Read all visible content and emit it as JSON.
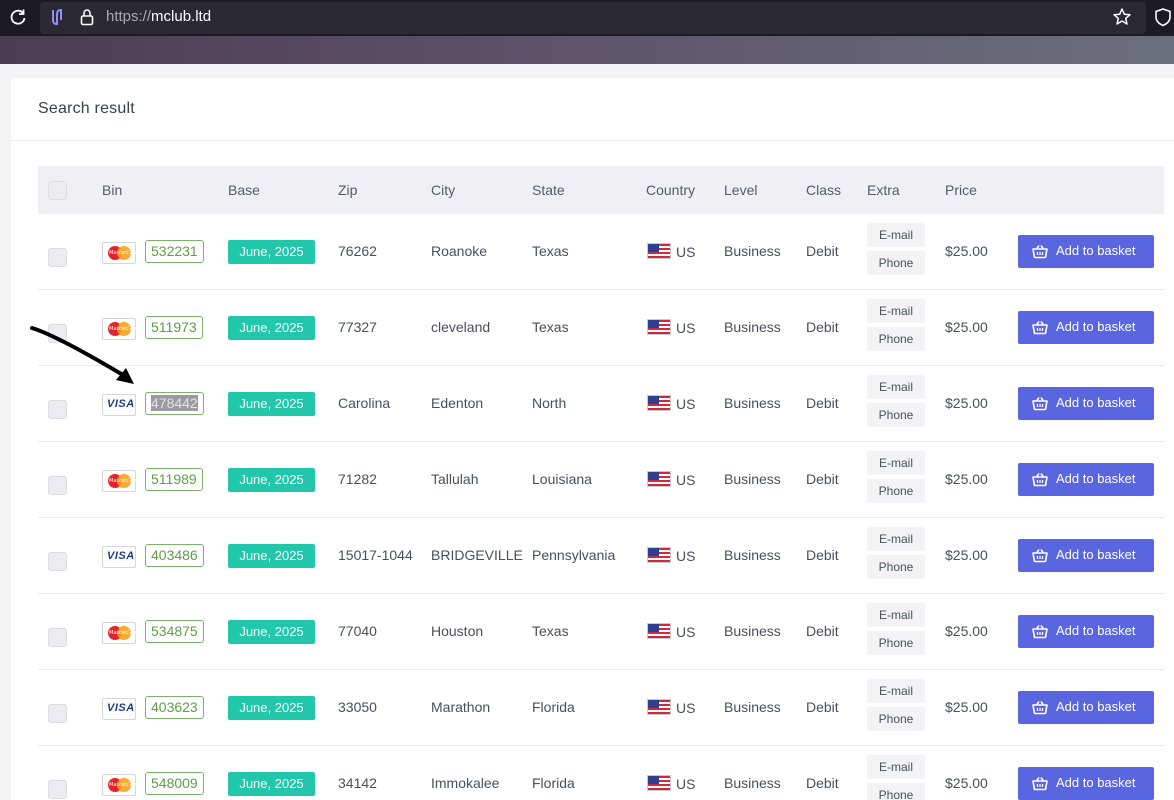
{
  "browser": {
    "url_protocol": "https://",
    "url_host": "mclub.ltd"
  },
  "card": {
    "title": "Search result"
  },
  "table": {
    "headers": {
      "bin": "Bin",
      "base": "Base",
      "zip": "Zip",
      "city": "City",
      "state": "State",
      "country": "Country",
      "level": "Level",
      "class": "Class",
      "extra": "Extra",
      "price": "Price"
    },
    "extra_email_label": "E-mail",
    "extra_phone_label": "Phone",
    "add_button_label": "Add to basket",
    "rows": [
      {
        "brand": "mastercard",
        "bin": "532231",
        "base": "June, 2025",
        "zip": "76262",
        "city": "Roanoke",
        "state": "Texas",
        "country": "US",
        "level": "Business",
        "class": "Debit",
        "price": "$25.00"
      },
      {
        "brand": "mastercard",
        "bin": "511973",
        "base": "June, 2025",
        "zip": "77327",
        "city": "cleveland",
        "state": "Texas",
        "country": "US",
        "level": "Business",
        "class": "Debit",
        "price": "$25.00"
      },
      {
        "brand": "visa",
        "bin": "478442",
        "base": "June, 2025",
        "zip": "Carolina",
        "city": "Edenton",
        "state": "North",
        "country": "US",
        "level": "Business",
        "class": "Debit",
        "price": "$25.00"
      },
      {
        "brand": "mastercard",
        "bin": "511989",
        "base": "June, 2025",
        "zip": "71282",
        "city": "Tallulah",
        "state": "Louisiana",
        "country": "US",
        "level": "Business",
        "class": "Debit",
        "price": "$25.00"
      },
      {
        "brand": "visa",
        "bin": "403486",
        "base": "June, 2025",
        "zip": "15017-1044",
        "city": "BRIDGEVILLE",
        "state": "Pennsylvania",
        "country": "US",
        "level": "Business",
        "class": "Debit",
        "price": "$25.00"
      },
      {
        "brand": "mastercard",
        "bin": "534875",
        "base": "June, 2025",
        "zip": "77040",
        "city": "Houston",
        "state": "Texas",
        "country": "US",
        "level": "Business",
        "class": "Debit",
        "price": "$25.00"
      },
      {
        "brand": "visa",
        "bin": "403623",
        "base": "June, 2025",
        "zip": "33050",
        "city": "Marathon",
        "state": "Florida",
        "country": "US",
        "level": "Business",
        "class": "Debit",
        "price": "$25.00"
      },
      {
        "brand": "mastercard",
        "bin": "548009",
        "base": "June, 2025",
        "zip": "34142",
        "city": "Immokalee",
        "state": "Florida",
        "country": "US",
        "level": "Business",
        "class": "Debit",
        "price": "$25.00"
      }
    ]
  },
  "brand_labels": {
    "mastercard": "MasterCard",
    "visa": "VISA"
  },
  "colors": {
    "accent_button": "#5a66e0",
    "base_badge": "#22c6ab",
    "bin_badge": "#5e9e47"
  }
}
